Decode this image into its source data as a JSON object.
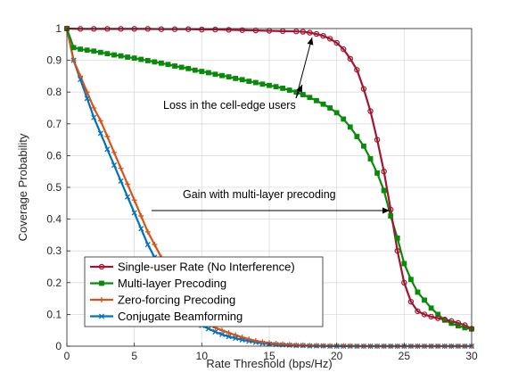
{
  "chart_data": {
    "type": "line",
    "title": "",
    "xlabel": "Rate Threshold (bps/Hz)",
    "ylabel": "Coverage Probability",
    "xlim": [
      0,
      30
    ],
    "ylim": [
      0,
      1
    ],
    "xticks": [
      0,
      5,
      10,
      15,
      20,
      25,
      30
    ],
    "yticks": [
      0,
      0.1,
      0.2,
      0.3,
      0.4,
      0.5,
      0.6,
      0.7,
      0.8,
      0.9,
      1
    ],
    "grid": true,
    "legend_position": "bottom-left",
    "series": [
      {
        "name": "Single-user Rate (No Interference)",
        "color": "#A2142F",
        "marker": "circle",
        "x": [
          0,
          1,
          2,
          3,
          4,
          5,
          6,
          7,
          8,
          9,
          10,
          11,
          12,
          13,
          14,
          15,
          16,
          17,
          17.5,
          18,
          18.5,
          19,
          19.5,
          20,
          20.5,
          21,
          21.5,
          22,
          22.5,
          23,
          23.5,
          24,
          24.5,
          25,
          25.5,
          26,
          26.5,
          27,
          27.5,
          28,
          28.5,
          29,
          29.5,
          30
        ],
        "y": [
          1,
          0.999,
          0.999,
          0.999,
          0.999,
          0.999,
          0.999,
          0.998,
          0.998,
          0.998,
          0.997,
          0.997,
          0.996,
          0.995,
          0.994,
          0.993,
          0.992,
          0.991,
          0.99,
          0.987,
          0.983,
          0.977,
          0.968,
          0.955,
          0.935,
          0.905,
          0.87,
          0.81,
          0.74,
          0.65,
          0.55,
          0.43,
          0.3,
          0.2,
          0.14,
          0.11,
          0.1,
          0.093,
          0.088,
          0.084,
          0.079,
          0.073,
          0.066,
          0.055
        ]
      },
      {
        "name": "Multi-layer Precoding",
        "color": "#0A8A0A",
        "marker": "square",
        "x": [
          0,
          0.5,
          1,
          1.5,
          2,
          2.5,
          3,
          3.5,
          4,
          4.5,
          5,
          5.5,
          6,
          6.5,
          7,
          7.5,
          8,
          8.5,
          9,
          9.5,
          10,
          10.5,
          11,
          11.5,
          12,
          12.5,
          13,
          13.5,
          14,
          14.5,
          15,
          15.5,
          16,
          16.5,
          17,
          17.5,
          18,
          18.5,
          19,
          19.5,
          20,
          20.5,
          21,
          21.5,
          22,
          22.5,
          23,
          23.5,
          24,
          24.5,
          25,
          25.5,
          26,
          26.5,
          27,
          27.5,
          28,
          28.5,
          29,
          29.5,
          30
        ],
        "y": [
          1,
          0.94,
          0.935,
          0.932,
          0.929,
          0.925,
          0.921,
          0.917,
          0.914,
          0.91,
          0.907,
          0.903,
          0.899,
          0.895,
          0.891,
          0.887,
          0.882,
          0.878,
          0.874,
          0.869,
          0.865,
          0.861,
          0.856,
          0.852,
          0.848,
          0.843,
          0.839,
          0.834,
          0.83,
          0.825,
          0.821,
          0.817,
          0.812,
          0.806,
          0.8,
          0.792,
          0.783,
          0.773,
          0.762,
          0.75,
          0.735,
          0.715,
          0.69,
          0.66,
          0.63,
          0.59,
          0.545,
          0.49,
          0.41,
          0.34,
          0.26,
          0.21,
          0.17,
          0.145,
          0.12,
          0.1,
          0.082,
          0.072,
          0.064,
          0.058,
          0.054
        ]
      },
      {
        "name": "Zero-forcing Precoding",
        "color": "#D95319",
        "marker": "plus",
        "x": [
          0,
          0.5,
          1,
          1.5,
          2,
          2.5,
          3,
          3.5,
          4,
          4.5,
          5,
          5.5,
          6,
          6.5,
          7,
          7.5,
          8,
          8.5,
          9,
          9.5,
          10,
          10.5,
          11,
          11.5,
          12,
          12.5,
          13,
          13.5,
          14,
          14.5,
          15,
          15.5,
          16,
          16.5,
          17,
          17.5,
          18,
          18.5,
          19,
          19.5,
          20,
          20.5,
          21,
          21.5,
          22,
          22.5,
          23,
          23.5,
          24,
          24.5,
          25,
          25.5,
          26,
          26.5,
          27,
          27.5,
          28,
          28.5,
          29,
          29.5,
          30
        ],
        "y": [
          1,
          0.9,
          0.85,
          0.8,
          0.75,
          0.71,
          0.66,
          0.61,
          0.56,
          0.51,
          0.46,
          0.41,
          0.36,
          0.32,
          0.28,
          0.24,
          0.21,
          0.17,
          0.14,
          0.11,
          0.085,
          0.07,
          0.058,
          0.05,
          0.042,
          0.035,
          0.028,
          0.022,
          0.017,
          0.013,
          0.01,
          0.008,
          0.006,
          0.005,
          0.004,
          0.003,
          0.002,
          0.002,
          0.001,
          0.001,
          0.001,
          0.001,
          0.001,
          0,
          0,
          0,
          0,
          0,
          0,
          0,
          0,
          0,
          0,
          0,
          0,
          0,
          0,
          0,
          0,
          0,
          0
        ]
      },
      {
        "name": "Conjugate Beamforming",
        "color": "#0072BD",
        "marker": "x",
        "x": [
          0,
          0.5,
          1,
          1.5,
          2,
          2.5,
          3,
          3.5,
          4,
          4.5,
          5,
          5.5,
          6,
          6.5,
          7,
          7.5,
          8,
          8.5,
          9,
          9.5,
          10,
          10.5,
          11,
          11.5,
          12,
          12.5,
          13,
          13.5,
          14,
          14.5,
          15,
          15.5,
          16,
          16.5,
          17,
          17.5,
          18,
          18.5,
          19,
          19.5,
          20,
          20.5,
          21,
          21.5,
          22,
          22.5,
          23,
          23.5,
          24,
          24.5,
          25,
          25.5,
          26,
          26.5,
          27,
          27.5,
          28,
          28.5,
          29,
          29.5,
          30
        ],
        "y": [
          1,
          0.9,
          0.84,
          0.78,
          0.72,
          0.67,
          0.62,
          0.57,
          0.52,
          0.47,
          0.42,
          0.37,
          0.32,
          0.28,
          0.24,
          0.2,
          0.17,
          0.14,
          0.11,
          0.085,
          0.065,
          0.055,
          0.045,
          0.037,
          0.03,
          0.025,
          0.02,
          0.016,
          0.012,
          0.009,
          0.007,
          0.005,
          0.004,
          0.003,
          0.002,
          0.002,
          0.001,
          0.001,
          0.001,
          0,
          0,
          0,
          0,
          0,
          0,
          0,
          0,
          0,
          0,
          0,
          0,
          0,
          0,
          0,
          0,
          0,
          0,
          0,
          0,
          0,
          0
        ]
      }
    ],
    "annotations": [
      {
        "text": "Loss in the cell-edge users"
      },
      {
        "text": "Gain with multi-layer precoding"
      }
    ]
  }
}
